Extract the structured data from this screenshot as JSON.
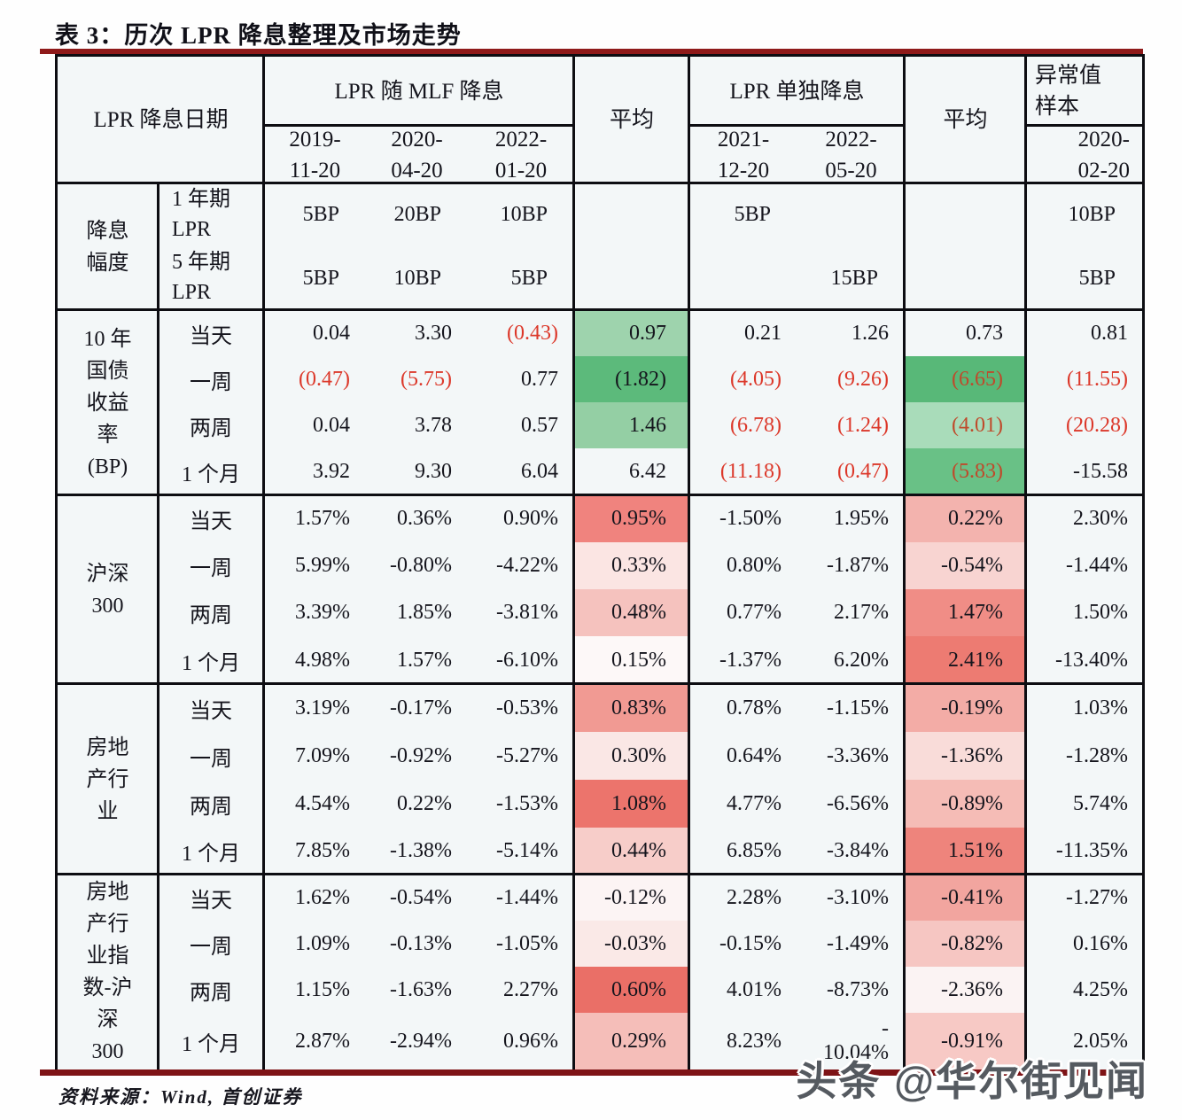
{
  "chart_data": {
    "type": "table",
    "title": "表 3：历次 LPR 降息整理及市场走势",
    "header": {
      "corner": "LPR 降息日期",
      "group_mlf": "LPR 随 MLF 降息",
      "mlf_dates": [
        "2019-\n11-20",
        "2020-\n04-20",
        "2022-\n01-20"
      ],
      "avg1": "平均",
      "group_solo": "LPR 单独降息",
      "solo_dates": [
        "2021-\n12-20",
        "2022-\n05-20"
      ],
      "avg2": "平均",
      "outlier": "异常值\n样本",
      "outlier_date": "2020-\n02-20"
    },
    "magnitude": {
      "label": "降息\n幅度",
      "rows": [
        {
          "sublabel": "1 年期\nLPR",
          "cells": [
            [
              "5BP",
              0,
              ""
            ],
            [
              "20BP",
              0,
              ""
            ],
            [
              "10BP",
              0,
              ""
            ],
            [
              "",
              0,
              ""
            ],
            [
              "5BP",
              0,
              ""
            ],
            [
              "",
              0,
              ""
            ],
            [
              "",
              0,
              ""
            ],
            [
              "10BP",
              0,
              ""
            ]
          ]
        },
        {
          "sublabel": "5 年期\nLPR",
          "cells": [
            [
              "5BP",
              0,
              ""
            ],
            [
              "10BP",
              0,
              ""
            ],
            [
              "5BP",
              0,
              ""
            ],
            [
              "",
              0,
              ""
            ],
            [
              "",
              0,
              ""
            ],
            [
              "15BP",
              0,
              ""
            ],
            [
              "",
              0,
              ""
            ],
            [
              "5BP",
              0,
              ""
            ]
          ]
        }
      ]
    },
    "sections": [
      {
        "label": "10 年\n国债\n收益\n率\n(BP)",
        "rows": [
          {
            "period": "当天",
            "cells": [
              [
                "0.04",
                0,
                ""
              ],
              [
                "3.30",
                0,
                ""
              ],
              [
                "(0.43)",
                1,
                ""
              ],
              [
                "0.97",
                0,
                "#9ed3ad"
              ],
              [
                "0.21",
                0,
                ""
              ],
              [
                "1.26",
                0,
                ""
              ],
              [
                "0.73",
                0,
                ""
              ],
              [
                "0.81",
                0,
                ""
              ]
            ]
          },
          {
            "period": "一周",
            "cells": [
              [
                "(0.47)",
                1,
                ""
              ],
              [
                "(5.75)",
                1,
                ""
              ],
              [
                "0.77",
                0,
                ""
              ],
              [
                "(1.82)",
                0,
                "#5cba7b"
              ],
              [
                "(4.05)",
                1,
                ""
              ],
              [
                "(9.26)",
                1,
                ""
              ],
              [
                "(6.65)",
                1,
                "#58b878"
              ],
              [
                "(11.55)",
                1,
                ""
              ]
            ]
          },
          {
            "period": "两周",
            "cells": [
              [
                "0.04",
                0,
                ""
              ],
              [
                "3.78",
                0,
                ""
              ],
              [
                "0.57",
                0,
                ""
              ],
              [
                "1.46",
                0,
                "#94cfa4"
              ],
              [
                "(6.78)",
                1,
                ""
              ],
              [
                "(1.24)",
                1,
                ""
              ],
              [
                "(4.01)",
                1,
                "#a9dcba"
              ],
              [
                "(20.28)",
                1,
                ""
              ]
            ]
          },
          {
            "period": "1 个月",
            "cells": [
              [
                "3.92",
                0,
                ""
              ],
              [
                "9.30",
                0,
                ""
              ],
              [
                "6.04",
                0,
                ""
              ],
              [
                "6.42",
                0,
                ""
              ],
              [
                "(11.18)",
                1,
                ""
              ],
              [
                "(0.47)",
                1,
                ""
              ],
              [
                "(5.83)",
                1,
                "#69c186"
              ],
              [
                "-15.58",
                0,
                ""
              ]
            ]
          }
        ]
      },
      {
        "label": "沪深\n300",
        "rows": [
          {
            "period": "当天",
            "cells": [
              [
                "1.57%",
                0,
                ""
              ],
              [
                "0.36%",
                0,
                ""
              ],
              [
                "0.90%",
                0,
                ""
              ],
              [
                "0.95%",
                0,
                "#f0837e"
              ],
              [
                "-1.50%",
                0,
                ""
              ],
              [
                "1.95%",
                0,
                ""
              ],
              [
                "0.22%",
                0,
                "#f3b3ae"
              ],
              [
                "2.30%",
                0,
                ""
              ]
            ]
          },
          {
            "period": "一周",
            "cells": [
              [
                "5.99%",
                0,
                ""
              ],
              [
                "-0.80%",
                0,
                ""
              ],
              [
                "-4.22%",
                0,
                ""
              ],
              [
                "0.33%",
                0,
                "#fbe5e3"
              ],
              [
                "0.80%",
                0,
                ""
              ],
              [
                "-1.87%",
                0,
                ""
              ],
              [
                "-0.54%",
                0,
                "#f8d4d1"
              ],
              [
                "-1.44%",
                0,
                ""
              ]
            ]
          },
          {
            "period": "两周",
            "cells": [
              [
                "3.39%",
                0,
                ""
              ],
              [
                "1.85%",
                0,
                ""
              ],
              [
                "-3.81%",
                0,
                ""
              ],
              [
                "0.48%",
                0,
                "#f5c2be"
              ],
              [
                "0.77%",
                0,
                ""
              ],
              [
                "2.17%",
                0,
                ""
              ],
              [
                "1.47%",
                0,
                "#f08d86"
              ],
              [
                "1.50%",
                0,
                ""
              ]
            ]
          },
          {
            "period": "1 个月",
            "cells": [
              [
                "4.98%",
                0,
                ""
              ],
              [
                "1.57%",
                0,
                ""
              ],
              [
                "-6.10%",
                0,
                ""
              ],
              [
                "0.15%",
                0,
                "#fdf8f8"
              ],
              [
                "-1.37%",
                0,
                ""
              ],
              [
                "6.20%",
                0,
                ""
              ],
              [
                "2.41%",
                0,
                "#ed7b72"
              ],
              [
                "-13.40%",
                0,
                ""
              ]
            ]
          }
        ]
      },
      {
        "label": "房地\n产行\n业",
        "rows": [
          {
            "period": "当天",
            "cells": [
              [
                "3.19%",
                0,
                ""
              ],
              [
                "-0.17%",
                0,
                ""
              ],
              [
                "-0.53%",
                0,
                ""
              ],
              [
                "0.83%",
                0,
                "#f19a93"
              ],
              [
                "0.78%",
                0,
                ""
              ],
              [
                "-1.15%",
                0,
                ""
              ],
              [
                "-0.19%",
                0,
                "#f3aca6"
              ],
              [
                "1.03%",
                0,
                ""
              ]
            ]
          },
          {
            "period": "一周",
            "cells": [
              [
                "7.09%",
                0,
                ""
              ],
              [
                "-0.92%",
                0,
                ""
              ],
              [
                "-5.27%",
                0,
                ""
              ],
              [
                "0.30%",
                0,
                "#fae7e5"
              ],
              [
                "0.64%",
                0,
                ""
              ],
              [
                "-3.36%",
                0,
                ""
              ],
              [
                "-1.36%",
                0,
                "#f9dcd9"
              ],
              [
                "-1.28%",
                0,
                ""
              ]
            ]
          },
          {
            "period": "两周",
            "cells": [
              [
                "4.54%",
                0,
                ""
              ],
              [
                "0.22%",
                0,
                ""
              ],
              [
                "-1.53%",
                0,
                ""
              ],
              [
                "1.08%",
                0,
                "#ec746c"
              ],
              [
                "4.77%",
                0,
                ""
              ],
              [
                "-6.56%",
                0,
                ""
              ],
              [
                "-0.89%",
                0,
                "#f5bcb6"
              ],
              [
                "5.74%",
                0,
                ""
              ]
            ]
          },
          {
            "period": "1 个月",
            "cells": [
              [
                "7.85%",
                0,
                ""
              ],
              [
                "-1.38%",
                0,
                ""
              ],
              [
                "-5.14%",
                0,
                ""
              ],
              [
                "0.44%",
                0,
                "#f7cdc9"
              ],
              [
                "6.85%",
                0,
                ""
              ],
              [
                "-3.84%",
                0,
                ""
              ],
              [
                "1.51%",
                0,
                "#ee847c"
              ],
              [
                "-11.35%",
                0,
                ""
              ]
            ]
          }
        ]
      },
      {
        "label": "房地\n产行\n业指\n数-沪\n深\n300",
        "rows": [
          {
            "period": "当天",
            "cells": [
              [
                "1.62%",
                0,
                ""
              ],
              [
                "-0.54%",
                0,
                ""
              ],
              [
                "-1.44%",
                0,
                ""
              ],
              [
                "-0.12%",
                0,
                "#fcf4f4"
              ],
              [
                "2.28%",
                0,
                ""
              ],
              [
                "-3.10%",
                0,
                ""
              ],
              [
                "-0.41%",
                0,
                "#f2a59f"
              ],
              [
                "-1.27%",
                0,
                ""
              ]
            ]
          },
          {
            "period": "一周",
            "cells": [
              [
                "1.09%",
                0,
                ""
              ],
              [
                "-0.13%",
                0,
                ""
              ],
              [
                "-1.05%",
                0,
                ""
              ],
              [
                "-0.03%",
                0,
                "#fae9e7"
              ],
              [
                "-0.15%",
                0,
                ""
              ],
              [
                "-1.49%",
                0,
                ""
              ],
              [
                "-0.82%",
                0,
                "#f6c6c2"
              ],
              [
                "0.16%",
                0,
                ""
              ]
            ]
          },
          {
            "period": "两周",
            "cells": [
              [
                "1.15%",
                0,
                ""
              ],
              [
                "-1.63%",
                0,
                ""
              ],
              [
                "2.27%",
                0,
                ""
              ],
              [
                "0.60%",
                0,
                "#ea6f67"
              ],
              [
                "4.01%",
                0,
                ""
              ],
              [
                "-8.73%",
                0,
                ""
              ],
              [
                "-2.36%",
                0,
                "#fbf3f3"
              ],
              [
                "4.25%",
                0,
                ""
              ]
            ]
          },
          {
            "period": "1 个月",
            "cells": [
              [
                "2.87%",
                0,
                ""
              ],
              [
                "-2.94%",
                0,
                ""
              ],
              [
                "0.96%",
                0,
                ""
              ],
              [
                "0.29%",
                0,
                "#f5beb9"
              ],
              [
                "8.23%",
                0,
                ""
              ],
              [
                "-\n10.04%",
                0,
                ""
              ],
              [
                "-0.91%",
                0,
                "#f7c9c5"
              ],
              [
                "2.05%",
                0,
                ""
              ]
            ]
          }
        ]
      }
    ]
  },
  "footer": {
    "source": "资料来源：Wind, 首创证券"
  },
  "watermark": "头条 @华尔街见闻",
  "colors": {
    "accent_line": "#8f1a1a",
    "red_text": "#dc382a",
    "green_strong": "#58b878",
    "red_strong": "#ea6f67"
  }
}
